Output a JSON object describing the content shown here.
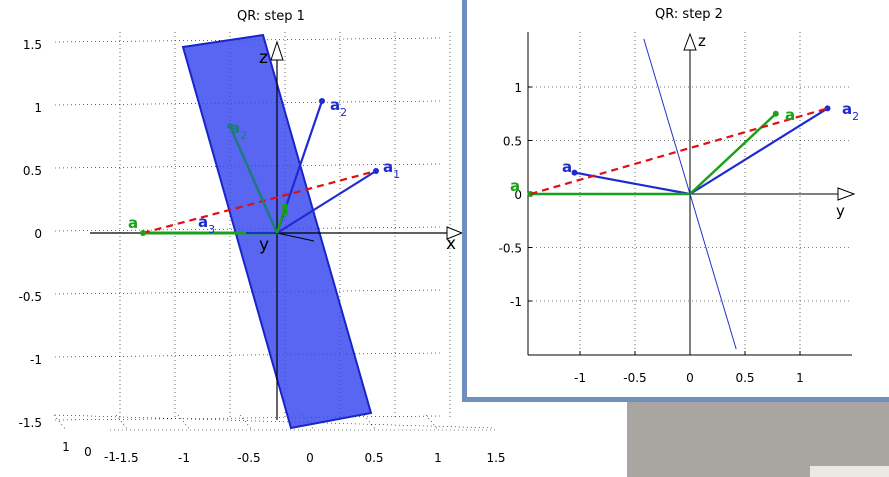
{
  "chart_data": [
    {
      "type": "3d-plot",
      "title": "QR: step 1",
      "axis_labels": {
        "x": "x",
        "y": "y",
        "z": "z"
      },
      "z_ticks": [
        "1.5",
        "1",
        "0.5",
        "0",
        "-0.5",
        "-1",
        "-1.5"
      ],
      "x_ticks": [
        "-1.5",
        "-1",
        "-0.5",
        "0",
        "0.5",
        "1",
        "1.5"
      ],
      "depth_ticks": [
        "1",
        "0",
        "-1"
      ],
      "grid": true,
      "vectors": [
        {
          "name": "a1",
          "base": "a",
          "sub": "1",
          "color": "#1f2bd0"
        },
        {
          "name": "a2",
          "base": "a",
          "sub": "2",
          "color": "#1f2bd0"
        },
        {
          "name": "a2-reflected",
          "base": "a",
          "sub": "2",
          "color": "#1f7a7a"
        },
        {
          "name": "a1-reflected",
          "base": "a",
          "sub": "",
          "color": "#1aa11a"
        },
        {
          "name": "a3-projected",
          "base": "a",
          "sub": "3",
          "color": "#1f2bd0"
        },
        {
          "name": "a-green-small",
          "base": "a",
          "sub": "",
          "color": "#1aa11a"
        }
      ],
      "reflection_line_color": "#e01010",
      "plane_color": "#3344ee"
    },
    {
      "type": "2d-plot",
      "title": "QR: step 2",
      "axis_labels": {
        "x": "y",
        "y": "z"
      },
      "x_ticks": [
        "-1",
        "-0.5",
        "0",
        "0.5",
        "1"
      ],
      "y_ticks": [
        "1",
        "0.5",
        "0",
        "-0.5",
        "-1"
      ],
      "grid": true,
      "xlim": [
        -1.45,
        1.45
      ],
      "ylim": [
        -1.45,
        1.45
      ],
      "series": [
        {
          "name": "a2",
          "type": "vector",
          "x": [
            0,
            1.25
          ],
          "y": [
            0,
            0.8
          ],
          "color": "#1f2bd0"
        },
        {
          "name": "a3",
          "type": "vector",
          "x": [
            0,
            -1.05
          ],
          "y": [
            0,
            0.2
          ],
          "color": "#1f2bd0"
        },
        {
          "name": "a-green-1",
          "type": "vector",
          "x": [
            0,
            0.78
          ],
          "y": [
            0,
            0.75
          ],
          "color": "#1aa11a"
        },
        {
          "name": "a-green-2",
          "type": "vector",
          "x": [
            0,
            -1.45
          ],
          "y": [
            0,
            0.0
          ],
          "color": "#1aa11a"
        },
        {
          "name": "reflection",
          "type": "dashed",
          "x": [
            -1.45,
            1.25
          ],
          "y": [
            0,
            0.8
          ],
          "color": "#e01010"
        },
        {
          "name": "plane-trace",
          "type": "line",
          "x": [
            -0.42,
            0.42
          ],
          "y": [
            1.45,
            -1.45
          ],
          "color": "#2233cc"
        }
      ],
      "vector_labels": [
        {
          "text": "a",
          "sub": "2",
          "color": "#1f2bd0"
        },
        {
          "text": "a",
          "sub": "",
          "color": "#1aa11a"
        },
        {
          "text": "a",
          "sub": "",
          "color": "#1f2bd0"
        },
        {
          "text": "a",
          "sub": "",
          "color": "#1aa11a"
        }
      ]
    }
  ],
  "colors": {
    "window_border": "#6e8fc0",
    "grey_panel": "#a9a6a1",
    "blue": "#1f2bd0",
    "green": "#1aa11a",
    "red": "#e01010"
  }
}
